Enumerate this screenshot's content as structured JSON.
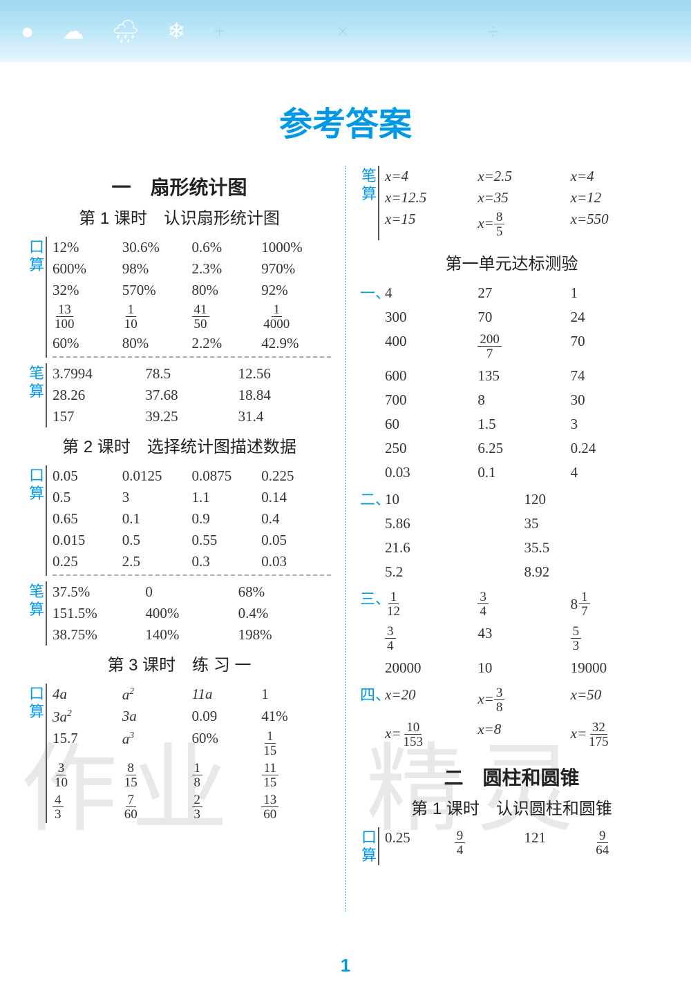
{
  "page_title": "参考答案",
  "page_number": "1",
  "colors": {
    "accent": "#0099e5",
    "text": "#333333",
    "header_bg": "#bde7f8"
  },
  "watermarks": [
    "作业",
    "精灵"
  ],
  "left": {
    "chapter": "一　扇形统计图",
    "lesson1": {
      "title": "第 1 课时　认识扇形统计图",
      "kousuan_label": "口算",
      "kousuan": [
        [
          "12%",
          "30.6%",
          "0.6%",
          "1000%"
        ],
        [
          "600%",
          "98%",
          "2.3%",
          "970%"
        ],
        [
          "32%",
          "570%",
          "80%",
          "92%"
        ]
      ],
      "kousuan_frac": [
        [
          {
            "n": "13",
            "d": "100"
          },
          {
            "n": "1",
            "d": "10"
          },
          {
            "n": "41",
            "d": "50"
          },
          {
            "n": "1",
            "d": "4000"
          }
        ]
      ],
      "kousuan2": [
        [
          "60%",
          "80%",
          "2.2%",
          "42.9%"
        ]
      ],
      "bisuan_label": "笔算",
      "bisuan": [
        [
          "3.7994",
          "78.5",
          "12.56"
        ],
        [
          "28.26",
          "37.68",
          "18.84"
        ],
        [
          "157",
          "39.25",
          "31.4"
        ]
      ]
    },
    "lesson2": {
      "title": "第 2 课时　选择统计图描述数据",
      "kousuan_label": "口算",
      "kousuan": [
        [
          "0.05",
          "0.0125",
          "0.0875",
          "0.225"
        ],
        [
          "0.5",
          "3",
          "1.1",
          "0.14"
        ],
        [
          "0.65",
          "0.1",
          "0.9",
          "0.4"
        ],
        [
          "0.015",
          "0.5",
          "0.55",
          "0.05"
        ],
        [
          "0.25",
          "2.5",
          "0.3",
          "0.03"
        ]
      ],
      "bisuan_label": "笔算",
      "bisuan": [
        [
          "37.5%",
          "0",
          "68%"
        ],
        [
          "151.5%",
          "400%",
          "0.4%"
        ],
        [
          "38.75%",
          "140%",
          "198%"
        ]
      ]
    },
    "lesson3": {
      "title": "第 3 课时　练 习 一",
      "kousuan_label": "口算",
      "rows": [
        [
          {
            "t": "expr",
            "v": "4a"
          },
          {
            "t": "expr",
            "v": "a²"
          },
          {
            "t": "expr",
            "v": "11a"
          },
          {
            "t": "plain",
            "v": "1"
          }
        ],
        [
          {
            "t": "expr",
            "v": "3a²"
          },
          {
            "t": "expr",
            "v": "3a"
          },
          {
            "t": "plain",
            "v": "0.09"
          },
          {
            "t": "plain",
            "v": "41%"
          }
        ],
        [
          {
            "t": "plain",
            "v": "15.7"
          },
          {
            "t": "expr",
            "v": "a³"
          },
          {
            "t": "plain",
            "v": "60%"
          },
          {
            "t": "frac",
            "n": "1",
            "d": "15"
          }
        ],
        [
          {
            "t": "frac",
            "n": "3",
            "d": "10"
          },
          {
            "t": "frac",
            "n": "8",
            "d": "15"
          },
          {
            "t": "frac",
            "n": "1",
            "d": "8"
          },
          {
            "t": "frac",
            "n": "11",
            "d": "15"
          }
        ],
        [
          {
            "t": "frac",
            "n": "4",
            "d": "3"
          },
          {
            "t": "frac",
            "n": "7",
            "d": "60"
          },
          {
            "t": "frac",
            "n": "2",
            "d": "3"
          },
          {
            "t": "frac",
            "n": "13",
            "d": "60"
          }
        ]
      ]
    }
  },
  "right": {
    "bisuan_label": "笔算",
    "bisuan_top": [
      [
        {
          "t": "eq",
          "v": "x=4"
        },
        {
          "t": "eq",
          "v": "x=2.5"
        },
        {
          "t": "eq",
          "v": "x=4"
        }
      ],
      [
        {
          "t": "eq",
          "v": "x=12.5"
        },
        {
          "t": "eq",
          "v": "x=35"
        },
        {
          "t": "eq",
          "v": "x=12"
        }
      ],
      [
        {
          "t": "eq",
          "v": "x=15"
        },
        {
          "t": "eqfrac",
          "pre": "x=",
          "n": "8",
          "d": "5"
        },
        {
          "t": "eq",
          "v": "x=550"
        }
      ]
    ],
    "test_title": "第一单元达标测验",
    "sec1_label": "一、",
    "sec1": [
      [
        "4",
        "27",
        "1"
      ],
      [
        "300",
        "70",
        "24"
      ],
      [
        "400",
        {
          "t": "frac",
          "n": "200",
          "d": "7"
        },
        "70"
      ],
      [
        "600",
        "135",
        "74"
      ],
      [
        "700",
        "8",
        "30"
      ],
      [
        "60",
        "1.5",
        "3"
      ],
      [
        "250",
        "6.25",
        "0.24"
      ],
      [
        "0.03",
        "0.1",
        "4"
      ]
    ],
    "sec2_label": "二、",
    "sec2": [
      [
        "10",
        "120"
      ],
      [
        "5.86",
        "35"
      ],
      [
        "21.6",
        "35.5"
      ],
      [
        "5.2",
        "8.92"
      ]
    ],
    "sec3_label": "三、",
    "sec3": [
      [
        {
          "t": "frac",
          "n": "1",
          "d": "12"
        },
        {
          "t": "frac",
          "n": "3",
          "d": "4"
        },
        {
          "t": "mixed",
          "w": "8",
          "n": "1",
          "d": "7"
        }
      ],
      [
        {
          "t": "frac",
          "n": "3",
          "d": "4"
        },
        {
          "t": "plain",
          "v": "43"
        },
        {
          "t": "frac",
          "n": "5",
          "d": "3"
        }
      ],
      [
        {
          "t": "plain",
          "v": "20000"
        },
        {
          "t": "plain",
          "v": "10"
        },
        {
          "t": "plain",
          "v": "19000"
        }
      ]
    ],
    "sec4_label": "四、",
    "sec4": [
      [
        {
          "t": "eq",
          "v": "x=20"
        },
        {
          "t": "eqfrac",
          "pre": "x=",
          "n": "3",
          "d": "8"
        },
        {
          "t": "eq",
          "v": "x=50"
        }
      ],
      [
        {
          "t": "eqfrac",
          "pre": "x=",
          "n": "10",
          "d": "153"
        },
        {
          "t": "eq",
          "v": "x=8"
        },
        {
          "t": "eqfrac",
          "pre": "x=",
          "n": "32",
          "d": "175"
        }
      ]
    ],
    "chapter2": "二　圆柱和圆锥",
    "lesson2_1": "第 1 课时　认识圆柱和圆锥",
    "kousuan_label": "口算",
    "kousuan_last": [
      [
        {
          "t": "plain",
          "v": "0.25"
        },
        {
          "t": "frac",
          "n": "9",
          "d": "4"
        },
        {
          "t": "plain",
          "v": "121"
        },
        {
          "t": "frac",
          "n": "9",
          "d": "64"
        }
      ]
    ]
  }
}
